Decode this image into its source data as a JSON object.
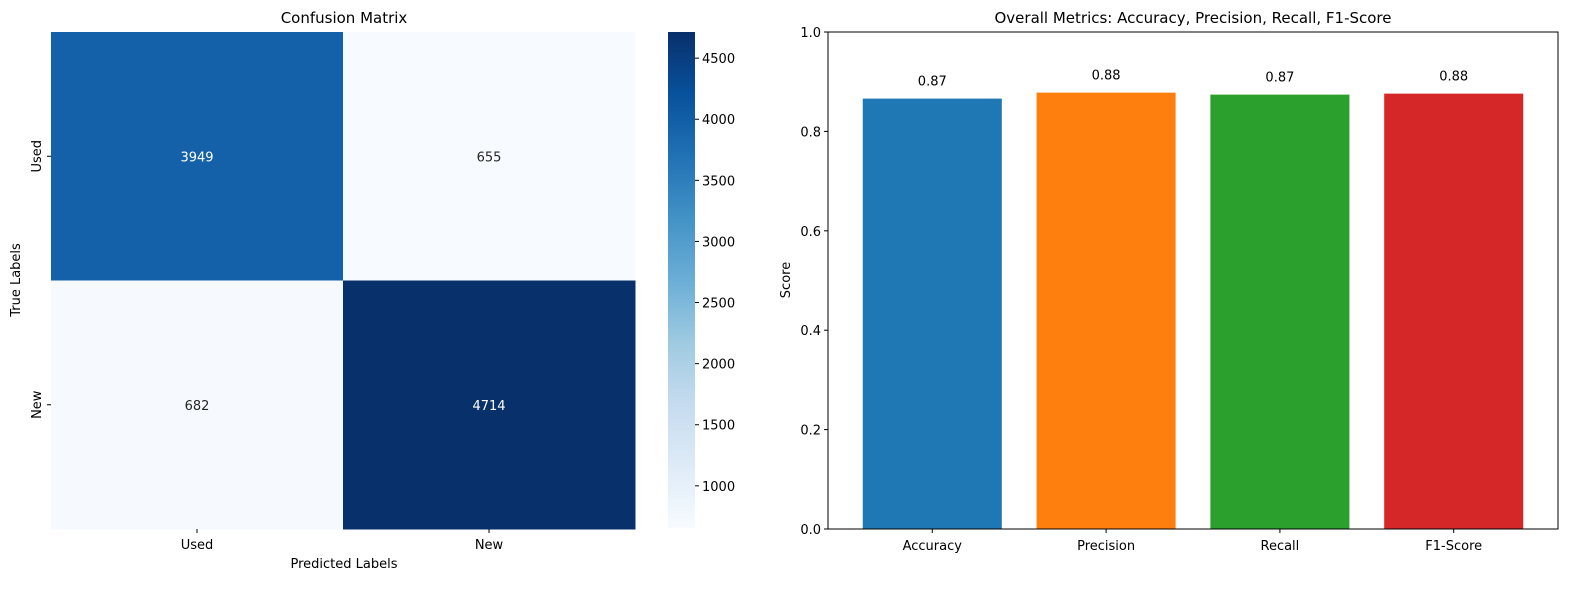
{
  "chart_data": [
    {
      "type": "heatmap",
      "title": "Confusion Matrix",
      "xlabel": "Predicted Labels",
      "ylabel": "True Labels",
      "x_categories": [
        "Used",
        "New"
      ],
      "y_categories": [
        "Used",
        "New"
      ],
      "values": [
        [
          3949,
          655
        ],
        [
          682,
          4714
        ]
      ],
      "colormap": "Blues",
      "colorbar": {
        "ticks": [
          1000,
          1500,
          2000,
          2500,
          3000,
          3500,
          4000,
          4500
        ],
        "min": 655,
        "max": 4714
      }
    },
    {
      "type": "bar",
      "title": "Overall Metrics: Accuracy, Precision, Recall, F1-Score",
      "xlabel": "",
      "ylabel": "Score",
      "categories": [
        "Accuracy",
        "Precision",
        "Recall",
        "F1-Score"
      ],
      "values": [
        0.866,
        0.878,
        0.874,
        0.876
      ],
      "value_labels": [
        "0.87",
        "0.88",
        "0.87",
        "0.88"
      ],
      "colors": [
        "#1f77b4",
        "#ff7f0e",
        "#2ca02c",
        "#d62728"
      ],
      "ylim": [
        0,
        1.0
      ],
      "yticks": [
        "0.0",
        "0.2",
        "0.4",
        "0.6",
        "0.8",
        "1.0"
      ]
    }
  ]
}
